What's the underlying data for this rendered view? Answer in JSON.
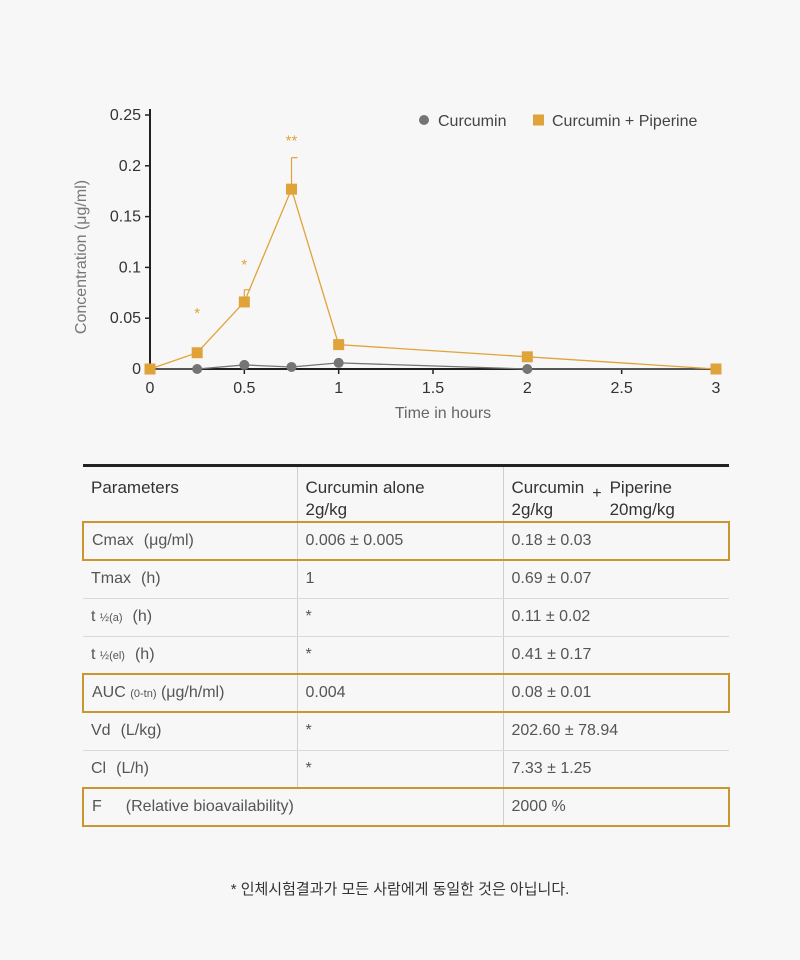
{
  "chart_data": {
    "type": "line",
    "xlabel": "Time in hours",
    "ylabel": "Concentration (μg/ml)",
    "xlim": [
      0,
      3
    ],
    "ylim": [
      0,
      0.25
    ],
    "x_ticks": [
      "0",
      "0.5",
      "1",
      "1.5",
      "2",
      "2.5",
      "3"
    ],
    "y_ticks": [
      "0",
      "0.05",
      "0.1",
      "0.15",
      "0.2",
      "0.25"
    ],
    "legend_position": "top-right",
    "series": [
      {
        "name": "Curcumin",
        "color": "#757575",
        "marker": "circle",
        "x": [
          0,
          0.25,
          0.5,
          0.75,
          1,
          2,
          3
        ],
        "y": [
          0,
          0,
          0.004,
          0.002,
          0.006,
          0,
          0
        ]
      },
      {
        "name": "Curcumin + Piperine",
        "color": "#e0a339",
        "marker": "square",
        "x": [
          0,
          0.25,
          0.5,
          0.75,
          1,
          2,
          3
        ],
        "y": [
          0,
          0.016,
          0.066,
          0.177,
          0.024,
          0.012,
          0
        ],
        "error_upper": [
          0,
          0,
          0.078,
          0.208,
          0,
          0,
          0
        ]
      }
    ],
    "annotations": [
      {
        "x": 0.25,
        "y": 0.05,
        "text": "*"
      },
      {
        "x": 0.5,
        "y": 0.098,
        "text": "*"
      },
      {
        "x": 0.75,
        "y": 0.22,
        "text": "**"
      }
    ]
  },
  "table": {
    "headers": {
      "param": "Parameters",
      "alone_name": "Curcumin alone",
      "alone_dose": "2g/kg",
      "combo_name": "Curcumin",
      "combo_dose": "2g/kg",
      "plus": "+",
      "piperine_name": "Piperine",
      "piperine_dose": "20mg/kg"
    },
    "rows": [
      {
        "main": "Cmax",
        "sub": "",
        "unit": "(μg/ml)",
        "alone": "0.006 ± 0.005",
        "combo": "0.18 ± 0.03"
      },
      {
        "main": "Tmax",
        "sub": "",
        "unit": "(h)",
        "alone": "1",
        "combo": "0.69 ± 0.07"
      },
      {
        "main": "t",
        "sub": "½(a)",
        "unit": "(h)",
        "alone": "*",
        "combo": "0.11 ± 0.02"
      },
      {
        "main": "t",
        "sub": "½(el)",
        "unit": "(h)",
        "alone": "*",
        "combo": "0.41 ± 0.17"
      },
      {
        "main": "AUC",
        "sub": "(0-tn)",
        "unit": "(μg/h/ml)",
        "alone": "0.004",
        "combo": "0.08 ± 0.01"
      },
      {
        "main": "Vd",
        "sub": "",
        "unit": "(L/kg)",
        "alone": "*",
        "combo": "202.60 ± 78.94"
      },
      {
        "main": "Cl",
        "sub": "",
        "unit": "(L/h)",
        "alone": "*",
        "combo": "7.33 ± 1.25"
      }
    ],
    "f_row": {
      "main": "F",
      "label": "(Relative bioavailability)",
      "value": "2000 %"
    }
  },
  "footnote": "* 인체시험결과가 모든 사람에게 동일한 것은 아닙니다.",
  "colors": {
    "accent": "#c9962f",
    "curcumin": "#757575",
    "piperine": "#e0a339"
  }
}
